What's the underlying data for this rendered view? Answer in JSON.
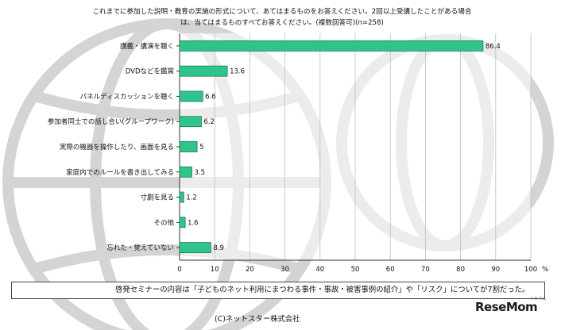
{
  "title_line1": "これまでに参加した説明・教育の実施の形式について、あてはまるものをお答えください。2回以上受講したことがある場合",
  "title_line2": "は、当てはまるものすべてお答えください。(複数回答可)(n=258)",
  "note": "啓発セミナーの内容は「子どものネット利用にまつわる事件・事故・被害事例の紹介」や「リスク」についてが7割だった。",
  "copyright": "(C)ネットスター株式会社",
  "logo": "ReseMom",
  "logo_sub": "リセマム",
  "colors": {
    "bar_fill": "#2ec48a",
    "bar_stroke": "#1e7a55",
    "axis": "#333333"
  },
  "chart_data": {
    "type": "bar",
    "orientation": "horizontal",
    "categories": [
      "講義・講演を聴く",
      "DVDなどを鑑賞",
      "パネルディスカッションを聴く",
      "参加者同士での話し合い(グループワーク)",
      "実際の機器を操作したり、画面を見る",
      "家庭内でのルールを書き出してみる",
      "寸劇を見る",
      "その他",
      "忘れた・覚えていない"
    ],
    "values": [
      86.4,
      13.6,
      6.6,
      6.2,
      5,
      3.5,
      1.2,
      1.6,
      8.9
    ],
    "value_labels": [
      "86.4",
      "13.6",
      "6.6",
      "6.2",
      "5",
      "3.5",
      "1.2",
      "1.6",
      "8.9"
    ],
    "xticks": [
      "0",
      "10",
      "20",
      "30",
      "40",
      "50",
      "60",
      "70",
      "80",
      "90",
      "100"
    ],
    "xlim": [
      0,
      100
    ],
    "unit": "%",
    "grid": true
  }
}
